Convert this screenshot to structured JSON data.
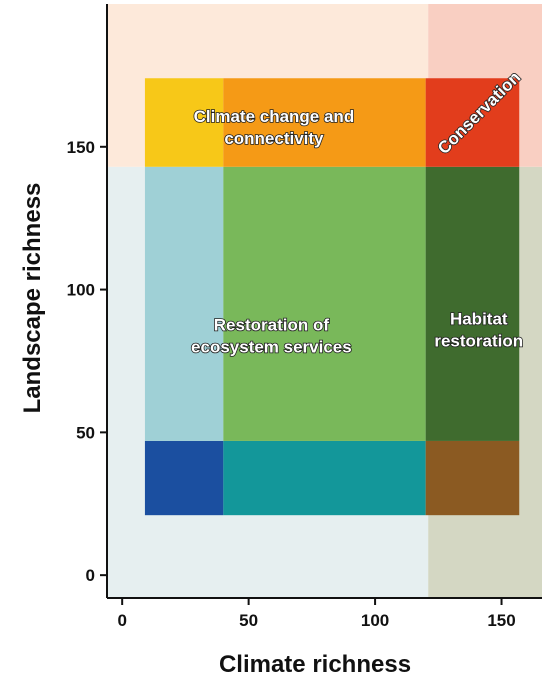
{
  "chart_data": {
    "type": "heatmap",
    "title": "",
    "xlabel": "Climate richness",
    "ylabel": "Landscape richness",
    "xlim": [
      -6,
      166
    ],
    "ylim": [
      -8,
      200
    ],
    "x_ticks": [
      0,
      50,
      100,
      150
    ],
    "y_ticks": [
      0,
      50,
      100,
      150
    ],
    "grid": false,
    "background_zones": [
      {
        "x": [
          -6,
          121
        ],
        "y": [
          -8,
          143
        ],
        "color": "#e6eff0"
      },
      {
        "x": [
          -6,
          121
        ],
        "y": [
          143,
          200
        ],
        "color": "#fde9da"
      },
      {
        "x": [
          121,
          166
        ],
        "y": [
          -8,
          143
        ],
        "color": "#d4d7c3"
      },
      {
        "x": [
          121,
          166
        ],
        "y": [
          143,
          200
        ],
        "color": "#f9cfc2"
      }
    ],
    "cells": [
      {
        "x": [
          9,
          40
        ],
        "y": [
          21,
          47
        ],
        "color": "#1b4fa0"
      },
      {
        "x": [
          40,
          120
        ],
        "y": [
          21,
          47
        ],
        "color": "#13979a"
      },
      {
        "x": [
          120,
          157
        ],
        "y": [
          21,
          47
        ],
        "color": "#8b5a22"
      },
      {
        "x": [
          9,
          40
        ],
        "y": [
          47,
          143
        ],
        "color": "#9fd0d6"
      },
      {
        "x": [
          40,
          120
        ],
        "y": [
          47,
          143
        ],
        "color": "#79b85a"
      },
      {
        "x": [
          120,
          157
        ],
        "y": [
          47,
          143
        ],
        "color": "#3f6b2e"
      },
      {
        "x": [
          9,
          40
        ],
        "y": [
          143,
          174
        ],
        "color": "#f7c818"
      },
      {
        "x": [
          40,
          120
        ],
        "y": [
          143,
          174
        ],
        "color": "#f59a16"
      },
      {
        "x": [
          120,
          157
        ],
        "y": [
          143,
          174
        ],
        "color": "#e23d1c"
      }
    ],
    "annotations": [
      {
        "text_lines": [
          "Climate change and",
          "connectivity"
        ],
        "x": 60,
        "y": 157
      },
      {
        "text_lines": [
          "Restoration of",
          "ecosystem services"
        ],
        "x": 59,
        "y": 84
      },
      {
        "text_lines": [
          "Habitat",
          "restoration"
        ],
        "x": 141,
        "y": 86
      },
      {
        "text_lines": [
          "Conservation"
        ],
        "x": 141,
        "y": 162,
        "rotate": -45
      }
    ]
  }
}
